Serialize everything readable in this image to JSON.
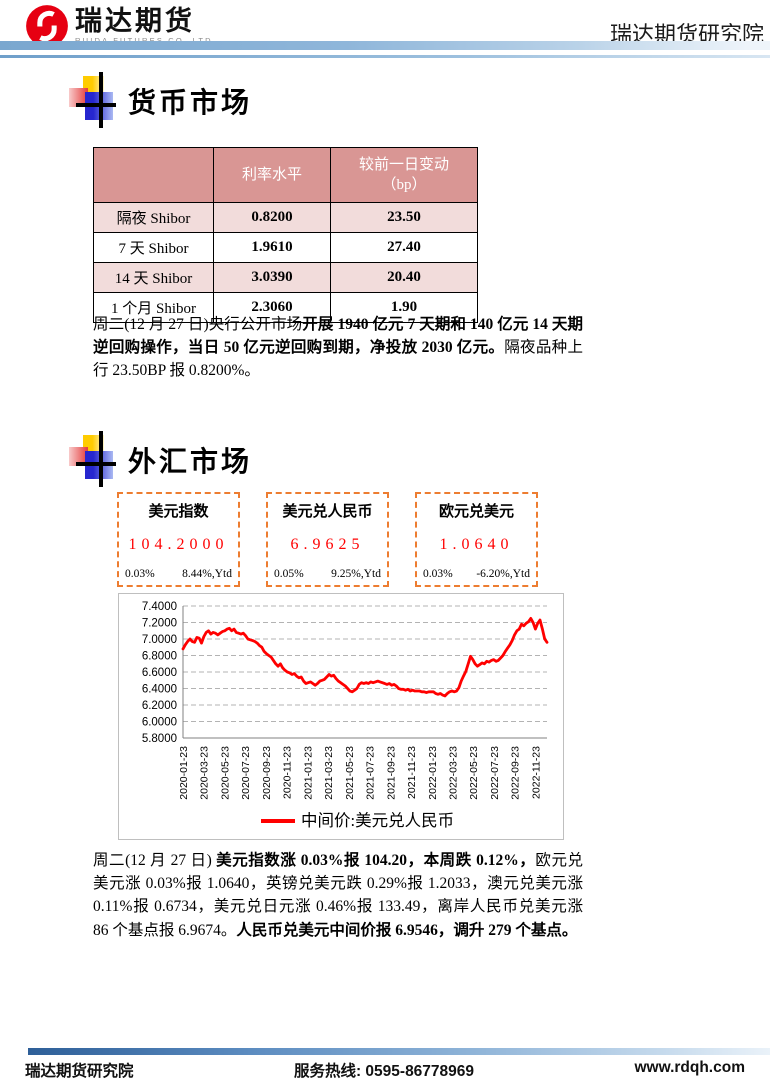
{
  "header": {
    "logo": {
      "brand": "瑞达期货",
      "subtitle": "RUIDA FUTURES CO.,LTD."
    },
    "org_name": "瑞达期货研究院"
  },
  "money_market": {
    "title": "货币市场",
    "table": {
      "headers": [
        "",
        "利率水平",
        "较前一日变动\n（bp）"
      ],
      "rows": [
        {
          "label": "隔夜 Shibor",
          "rate": "0.8200",
          "change": "23.50"
        },
        {
          "label": "7 天 Shibor",
          "rate": "1.9610",
          "change": "27.40"
        },
        {
          "label": "14 天 Shibor",
          "rate": "3.0390",
          "change": "20.40"
        },
        {
          "label": "1 个月 Shibor",
          "rate": "2.3060",
          "change": "1.90"
        }
      ]
    },
    "paragraph": {
      "normal1": "周二(12 月 27 日)央行公开市场",
      "bold1": "开展 1940 亿元 7 天期和 140 亿元 14 天期逆回购操作，当日 50 亿元逆回购到期，净投放 2030 亿元。",
      "normal2": "隔夜品种上行 23.50BP 报 0.8200%。"
    }
  },
  "fx_market": {
    "title": "外汇市场",
    "indicators": [
      {
        "name": "美元指数",
        "value": "104.2000",
        "day_change": "0.03%",
        "ytd_change": "8.44%,Ytd"
      },
      {
        "name": "美元兑人民币",
        "value": "6.9625",
        "day_change": "0.05%",
        "ytd_change": "9.25%,Ytd"
      },
      {
        "name": "欧元兑美元",
        "value": "1.0640",
        "day_change": "0.03%",
        "ytd_change": "-6.20%,Ytd"
      }
    ],
    "paragraph": {
      "normal1": "周二(12 月 27 日) ",
      "bold1": "美元指数涨 0.03%报 104.20，本周跌 0.12%，",
      "normal2": "欧元兑美元涨 0.03%报 1.0640，英镑兑美元跌 0.29%报 1.2033，澳元兑美元涨 0.11%报 0.6734，美元兑日元涨 0.46%报 133.49，离岸人民币兑美元涨 86 个基点报 6.9674。",
      "bold2": "人民币兑美元中间价报 6.9546，调升 279 个基点。"
    }
  },
  "chart_data": {
    "type": "line",
    "title": "",
    "legend": "中间价:美元兑人民币",
    "legend_position": "bottom",
    "line_color": "#ff0000",
    "grid": "dashed-horizontal",
    "ylim": [
      5.8,
      7.4
    ],
    "y_ticks": [
      5.8,
      6.0,
      6.2,
      6.4,
      6.6,
      6.8,
      7.0,
      7.2,
      7.4
    ],
    "y_tick_format": "4dp",
    "x_tick_labels": [
      "2020-01-23",
      "2020-03-23",
      "2020-05-23",
      "2020-07-23",
      "2020-09-23",
      "2020-11-23",
      "2021-01-23",
      "2021-03-23",
      "2021-05-23",
      "2021-07-23",
      "2021-09-23",
      "2021-11-23",
      "2022-01-23",
      "2022-03-23",
      "2022-05-23",
      "2022-07-23",
      "2022-09-23",
      "2022-11-23"
    ],
    "series": [
      {
        "name": "中间价:美元兑人民币",
        "values": [
          6.88,
          6.93,
          6.97,
          7.0,
          6.97,
          6.96,
          7.02,
          7.01,
          6.95,
          7.03,
          7.08,
          7.1,
          7.06,
          7.08,
          7.07,
          7.05,
          7.07,
          7.09,
          7.1,
          7.12,
          7.13,
          7.1,
          7.12,
          7.08,
          7.07,
          7.06,
          7.07,
          7.04,
          7.0,
          6.99,
          6.98,
          6.97,
          6.95,
          6.92,
          6.9,
          6.85,
          6.82,
          6.8,
          6.78,
          6.74,
          6.7,
          6.67,
          6.7,
          6.65,
          6.62,
          6.6,
          6.59,
          6.57,
          6.58,
          6.55,
          6.53,
          6.54,
          6.49,
          6.46,
          6.47,
          6.48,
          6.46,
          6.44,
          6.46,
          6.49,
          6.5,
          6.51,
          6.54,
          6.57,
          6.55,
          6.56,
          6.52,
          6.49,
          6.47,
          6.45,
          6.43,
          6.4,
          6.37,
          6.36,
          6.38,
          6.4,
          6.45,
          6.47,
          6.46,
          6.47,
          6.46,
          6.48,
          6.47,
          6.48,
          6.49,
          6.48,
          6.47,
          6.46,
          6.45,
          6.46,
          6.44,
          6.45,
          6.43,
          6.4,
          6.39,
          6.39,
          6.38,
          6.39,
          6.37,
          6.38,
          6.37,
          6.37,
          6.37,
          6.36,
          6.36,
          6.35,
          6.36,
          6.36,
          6.36,
          6.34,
          6.33,
          6.34,
          6.32,
          6.31,
          6.34,
          6.36,
          6.37,
          6.36,
          6.37,
          6.41,
          6.49,
          6.55,
          6.61,
          6.7,
          6.79,
          6.75,
          6.7,
          6.67,
          6.69,
          6.71,
          6.7,
          6.73,
          6.72,
          6.74,
          6.75,
          6.73,
          6.74,
          6.77,
          6.8,
          6.85,
          6.89,
          6.93,
          6.98,
          7.05,
          7.1,
          7.12,
          7.18,
          7.16,
          7.19,
          7.21,
          7.25,
          7.2,
          7.12,
          7.19,
          7.23,
          7.12,
          7.0,
          6.96
        ]
      }
    ]
  },
  "footer": {
    "left": "瑞达期货研究院",
    "center": "服务热线: 0595-86778969",
    "right": "www.rdqh.com"
  },
  "colors": {
    "table_header_bg": "#d99694",
    "table_alt_row_bg": "#f2dcdb",
    "indicator_border": "#ed7d31",
    "indicator_value": "#ff0000",
    "chart_line": "#ff0000",
    "header_bar_blue": "#7aa7cf",
    "footer_bar_blue": "#2e5f98"
  }
}
